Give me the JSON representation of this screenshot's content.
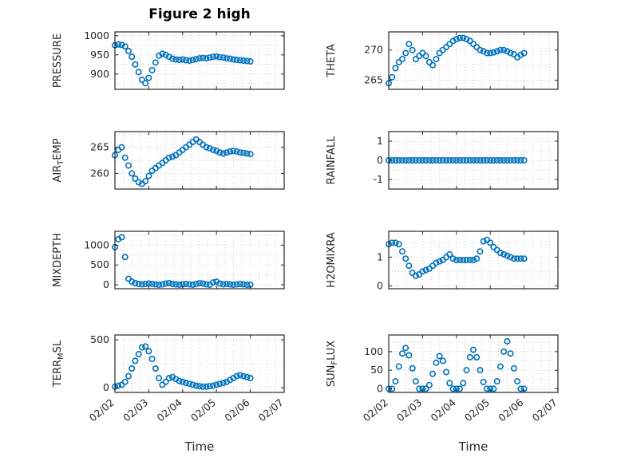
{
  "ui": {
    "title": "Figure 2 high",
    "xlabel": "Time",
    "marker_color": "#0072BD",
    "axis_color": "#262626",
    "grid_color": "#c9c9c9",
    "x_tick_values": [
      0,
      1,
      2,
      3,
      4,
      5
    ],
    "x_tick_labels": [
      "02/02",
      "02/03",
      "02/04",
      "02/05",
      "02/06",
      "02/07"
    ]
  },
  "chart_data": [
    {
      "type": "scatter",
      "name": "pressure",
      "ylabel": "PRESSURE",
      "ylabel_parts": [
        {
          "text": "PRESSURE",
          "sub": false
        }
      ],
      "xlim": [
        0,
        5
      ],
      "ylim": [
        860,
        1010
      ],
      "yticks": [
        900,
        950,
        1000
      ],
      "x": [
        0,
        0.1,
        0.2,
        0.3,
        0.4,
        0.5,
        0.6,
        0.7,
        0.8,
        0.9,
        1,
        1.1,
        1.2,
        1.3,
        1.4,
        1.5,
        1.6,
        1.7,
        1.8,
        1.9,
        2,
        2.1,
        2.2,
        2.3,
        2.4,
        2.5,
        2.6,
        2.7,
        2.8,
        2.9,
        3,
        3.1,
        3.2,
        3.3,
        3.4,
        3.5,
        3.6,
        3.7,
        3.8,
        3.9,
        4
      ],
      "y": [
        975,
        977,
        976,
        972,
        960,
        945,
        925,
        905,
        885,
        876,
        890,
        910,
        930,
        948,
        953,
        950,
        945,
        940,
        938,
        937,
        938,
        936,
        935,
        937,
        939,
        941,
        942,
        941,
        943,
        945,
        946,
        944,
        943,
        941,
        940,
        938,
        937,
        936,
        935,
        934,
        933
      ]
    },
    {
      "type": "scatter",
      "name": "air-temp",
      "ylabel": "AIR_TEMP",
      "ylabel_parts": [
        {
          "text": "AIR",
          "sub": false
        },
        {
          "text": "T",
          "sub": true
        },
        {
          "text": "EMP",
          "sub": false
        }
      ],
      "xlim": [
        0,
        5
      ],
      "ylim": [
        257,
        268
      ],
      "yticks": [
        260,
        265
      ],
      "x": [
        0,
        0.1,
        0.2,
        0.3,
        0.4,
        0.5,
        0.6,
        0.7,
        0.8,
        0.9,
        1,
        1.1,
        1.2,
        1.3,
        1.4,
        1.5,
        1.6,
        1.7,
        1.8,
        1.9,
        2,
        2.1,
        2.2,
        2.3,
        2.4,
        2.5,
        2.6,
        2.7,
        2.8,
        2.9,
        3,
        3.1,
        3.2,
        3.3,
        3.4,
        3.5,
        3.6,
        3.7,
        3.8,
        3.9,
        4
      ],
      "y": [
        263.5,
        264.5,
        265,
        263,
        261.5,
        260,
        259,
        258.3,
        258,
        258.5,
        259.5,
        260.5,
        261,
        261.5,
        262,
        262.5,
        263,
        263.2,
        263.5,
        264,
        264.5,
        265,
        265.5,
        266,
        266.5,
        266,
        265.5,
        265,
        264.8,
        264.5,
        264.3,
        264,
        263.8,
        264,
        264.2,
        264.3,
        264.2,
        264,
        263.9,
        263.8,
        263.7
      ]
    },
    {
      "type": "scatter",
      "name": "mixdepth",
      "ylabel": "MIXDEPTH",
      "ylabel_parts": [
        {
          "text": "MIXDEPTH",
          "sub": false
        }
      ],
      "xlim": [
        0,
        5
      ],
      "ylim": [
        -100,
        1350
      ],
      "yticks": [
        0,
        500,
        1000
      ],
      "x": [
        0,
        0.1,
        0.2,
        0.3,
        0.4,
        0.5,
        0.6,
        0.7,
        0.8,
        0.9,
        1,
        1.1,
        1.2,
        1.3,
        1.4,
        1.5,
        1.6,
        1.7,
        1.8,
        1.9,
        2,
        2.1,
        2.2,
        2.3,
        2.4,
        2.5,
        2.6,
        2.7,
        2.8,
        2.9,
        3,
        3.1,
        3.2,
        3.3,
        3.4,
        3.5,
        3.6,
        3.7,
        3.8,
        3.9,
        4
      ],
      "y": [
        950,
        1150,
        1200,
        700,
        150,
        80,
        40,
        20,
        10,
        20,
        30,
        20,
        10,
        0,
        10,
        30,
        40,
        20,
        10,
        0,
        10,
        20,
        10,
        0,
        20,
        40,
        30,
        10,
        0,
        60,
        80,
        30,
        10,
        20,
        10,
        0,
        10,
        20,
        10,
        0,
        0
      ]
    },
    {
      "type": "scatter",
      "name": "terr-msl",
      "ylabel": "TERR_MSL",
      "ylabel_parts": [
        {
          "text": "TERR",
          "sub": false
        },
        {
          "text": "M",
          "sub": true
        },
        {
          "text": "SL",
          "sub": false
        }
      ],
      "xlim": [
        0,
        5
      ],
      "ylim": [
        -50,
        550
      ],
      "yticks": [
        0,
        500
      ],
      "x": [
        0,
        0.1,
        0.2,
        0.3,
        0.4,
        0.5,
        0.6,
        0.7,
        0.8,
        0.9,
        1,
        1.1,
        1.2,
        1.3,
        1.4,
        1.5,
        1.6,
        1.7,
        1.8,
        1.9,
        2,
        2.1,
        2.2,
        2.3,
        2.4,
        2.5,
        2.6,
        2.7,
        2.8,
        2.9,
        3,
        3.1,
        3.2,
        3.3,
        3.4,
        3.5,
        3.6,
        3.7,
        3.8,
        3.9,
        4
      ],
      "y": [
        10,
        20,
        30,
        60,
        120,
        200,
        280,
        350,
        420,
        430,
        380,
        300,
        200,
        100,
        30,
        60,
        100,
        110,
        90,
        70,
        60,
        50,
        40,
        30,
        20,
        15,
        10,
        10,
        15,
        20,
        30,
        40,
        50,
        60,
        80,
        100,
        120,
        130,
        120,
        110,
        100
      ]
    },
    {
      "type": "scatter",
      "name": "theta",
      "ylabel": "THETA",
      "ylabel_parts": [
        {
          "text": "THETA",
          "sub": false
        }
      ],
      "xlim": [
        0,
        5
      ],
      "ylim": [
        263.5,
        273
      ],
      "yticks": [
        265,
        270
      ],
      "x": [
        0,
        0.1,
        0.2,
        0.3,
        0.4,
        0.5,
        0.6,
        0.7,
        0.8,
        0.9,
        1,
        1.1,
        1.2,
        1.3,
        1.4,
        1.5,
        1.6,
        1.7,
        1.8,
        1.9,
        2,
        2.1,
        2.2,
        2.3,
        2.4,
        2.5,
        2.6,
        2.7,
        2.8,
        2.9,
        3,
        3.1,
        3.2,
        3.3,
        3.4,
        3.5,
        3.6,
        3.7,
        3.8,
        3.9,
        4
      ],
      "y": [
        264.5,
        265.5,
        267,
        268,
        268.5,
        269.5,
        271,
        270,
        268.5,
        269,
        269.5,
        269,
        268,
        267.5,
        268.5,
        269.5,
        270,
        270.5,
        271,
        271.5,
        271.8,
        272,
        272,
        271.8,
        271.5,
        271,
        270.5,
        270,
        269.8,
        269.5,
        269.5,
        269.6,
        269.8,
        270,
        270,
        269.8,
        269.5,
        269.3,
        268.8,
        269.2,
        269.5
      ]
    },
    {
      "type": "scatter",
      "name": "rainfall",
      "ylabel": "RAINFALL",
      "ylabel_parts": [
        {
          "text": "RAINFALL",
          "sub": false
        }
      ],
      "xlim": [
        0,
        5
      ],
      "ylim": [
        -1.5,
        1.5
      ],
      "yticks": [
        -1,
        0,
        1
      ],
      "x": [
        0,
        0.1,
        0.2,
        0.3,
        0.4,
        0.5,
        0.6,
        0.7,
        0.8,
        0.9,
        1,
        1.1,
        1.2,
        1.3,
        1.4,
        1.5,
        1.6,
        1.7,
        1.8,
        1.9,
        2,
        2.1,
        2.2,
        2.3,
        2.4,
        2.5,
        2.6,
        2.7,
        2.8,
        2.9,
        3,
        3.1,
        3.2,
        3.3,
        3.4,
        3.5,
        3.6,
        3.7,
        3.8,
        3.9,
        4
      ],
      "y": [
        0,
        0,
        0,
        0,
        0,
        0,
        0,
        0,
        0,
        0,
        0,
        0,
        0,
        0,
        0,
        0,
        0,
        0,
        0,
        0,
        0,
        0,
        0,
        0,
        0,
        0,
        0,
        0,
        0,
        0,
        0,
        0,
        0,
        0,
        0,
        0,
        0,
        0,
        0,
        0,
        0
      ]
    },
    {
      "type": "scatter",
      "name": "h2omixra",
      "ylabel": "H2OMIXRA",
      "ylabel_parts": [
        {
          "text": "H2OMIXRA",
          "sub": false
        }
      ],
      "xlim": [
        0,
        5
      ],
      "ylim": [
        -0.1,
        1.9
      ],
      "yticks": [
        0,
        1
      ],
      "x": [
        0,
        0.1,
        0.2,
        0.3,
        0.4,
        0.5,
        0.6,
        0.7,
        0.8,
        0.9,
        1,
        1.1,
        1.2,
        1.3,
        1.4,
        1.5,
        1.6,
        1.7,
        1.8,
        1.9,
        2,
        2.1,
        2.2,
        2.3,
        2.4,
        2.5,
        2.6,
        2.7,
        2.8,
        2.9,
        3,
        3.1,
        3.2,
        3.3,
        3.4,
        3.5,
        3.6,
        3.7,
        3.8,
        3.9,
        4
      ],
      "y": [
        1.45,
        1.5,
        1.5,
        1.45,
        1.2,
        0.95,
        0.7,
        0.45,
        0.35,
        0.4,
        0.5,
        0.55,
        0.6,
        0.7,
        0.8,
        0.85,
        0.9,
        1,
        1.1,
        0.95,
        0.9,
        0.9,
        0.9,
        0.9,
        0.9,
        0.9,
        0.95,
        1.2,
        1.55,
        1.6,
        1.5,
        1.35,
        1.25,
        1.15,
        1.1,
        1.05,
        1,
        0.95,
        0.95,
        0.95,
        0.95
      ]
    },
    {
      "type": "scatter",
      "name": "sun-flux",
      "ylabel": "SUN_FLUX",
      "ylabel_parts": [
        {
          "text": "SUN",
          "sub": false
        },
        {
          "text": "F",
          "sub": true
        },
        {
          "text": "LUX",
          "sub": false
        }
      ],
      "xlim": [
        0,
        5
      ],
      "ylim": [
        -10,
        145
      ],
      "yticks": [
        0,
        50,
        100
      ],
      "x": [
        0,
        0.1,
        0.2,
        0.3,
        0.4,
        0.5,
        0.6,
        0.7,
        0.8,
        0.9,
        1,
        1.1,
        1.2,
        1.3,
        1.4,
        1.5,
        1.6,
        1.7,
        1.8,
        1.9,
        2,
        2.1,
        2.2,
        2.3,
        2.4,
        2.5,
        2.6,
        2.7,
        2.8,
        2.9,
        3,
        3.1,
        3.2,
        3.3,
        3.4,
        3.5,
        3.6,
        3.7,
        3.8,
        3.9,
        4
      ],
      "y": [
        0,
        0,
        20,
        60,
        95,
        110,
        90,
        55,
        20,
        0,
        0,
        0,
        10,
        40,
        70,
        88,
        75,
        45,
        15,
        0,
        0,
        0,
        15,
        50,
        85,
        105,
        85,
        50,
        18,
        0,
        0,
        0,
        20,
        60,
        100,
        128,
        95,
        55,
        20,
        0,
        0
      ]
    }
  ]
}
